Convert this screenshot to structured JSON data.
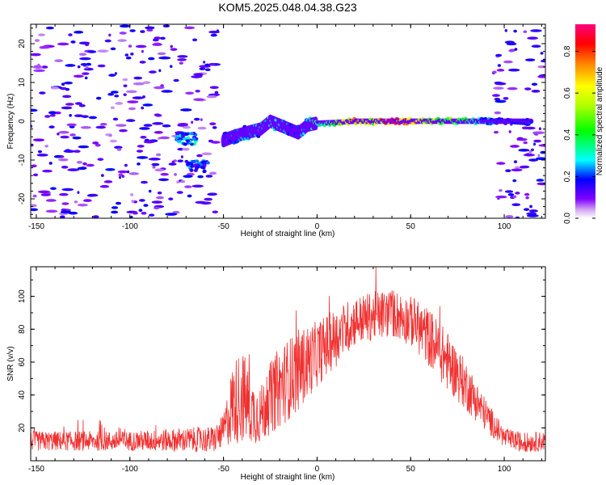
{
  "chart_data": [
    {
      "type": "heatmap",
      "title": "KOM5.2025.048.04.38.G23",
      "xlabel": "Height of straight line (km)",
      "ylabel": "Frequency (Hz)",
      "xlim": [
        -153,
        122
      ],
      "ylim": [
        -25,
        25
      ],
      "x_ticks": [
        -150,
        -100,
        -50,
        0,
        50,
        100
      ],
      "y_ticks": [
        -20,
        -10,
        0,
        10,
        20
      ],
      "colorbar": {
        "label": "Normalized spectral amplitude",
        "range": [
          0,
          0.93
        ],
        "ticks": [
          0.0,
          0.2,
          0.4,
          0.6,
          0.8
        ]
      },
      "noise_regions_x": [
        [
          -153,
          -52
        ],
        [
          93,
          122
        ]
      ],
      "noise_level": 0.15,
      "clusters": [
        {
          "x": [
            -75,
            -64
          ],
          "freq": -4.5,
          "amplitude": 0.25
        },
        {
          "x": [
            -70,
            -58
          ],
          "freq": -11.5,
          "amplitude": 0.2
        }
      ],
      "trace": [
        {
          "x": -50,
          "freq": -5,
          "amplitude": 0.2
        },
        {
          "x": -45,
          "freq": -4,
          "amplitude": 0.22
        },
        {
          "x": -38,
          "freq": -3,
          "amplitude": 0.25
        },
        {
          "x": -30,
          "freq": -2,
          "amplitude": 0.25
        },
        {
          "x": -25,
          "freq": 0,
          "amplitude": 0.3
        },
        {
          "x": -20,
          "freq": -1,
          "amplitude": 0.35
        },
        {
          "x": -15,
          "freq": -2,
          "amplitude": 0.25
        },
        {
          "x": -10,
          "freq": -3,
          "amplitude": 0.2
        },
        {
          "x": -5,
          "freq": -1,
          "amplitude": 0.3
        },
        {
          "x": 0,
          "freq": -0.5,
          "amplitude": 0.35
        },
        {
          "x": 10,
          "freq": -0.3,
          "amplitude": 0.45
        },
        {
          "x": 20,
          "freq": 0,
          "amplitude": 0.75
        },
        {
          "x": 30,
          "freq": 0,
          "amplitude": 0.6
        },
        {
          "x": 40,
          "freq": 0,
          "amplitude": 0.9
        },
        {
          "x": 50,
          "freq": 0,
          "amplitude": 0.7
        },
        {
          "x": 60,
          "freq": 0,
          "amplitude": 0.6
        },
        {
          "x": 70,
          "freq": 0,
          "amplitude": 0.5
        },
        {
          "x": 80,
          "freq": 0,
          "amplitude": 0.4
        },
        {
          "x": 90,
          "freq": 0,
          "amplitude": 0.25
        },
        {
          "x": 100,
          "freq": 0,
          "amplitude": 0.15
        },
        {
          "x": 115,
          "freq": 0,
          "amplitude": 0.2
        }
      ]
    },
    {
      "type": "line",
      "xlabel": "Height of straight line (km)",
      "ylabel": "SNR (v/v)",
      "xlim": [
        -153,
        122
      ],
      "ylim": [
        0,
        118
      ],
      "x_ticks": [
        -150,
        -100,
        -50,
        0,
        50,
        100
      ],
      "y_ticks": [
        20,
        40,
        60,
        80,
        100
      ],
      "series": [
        {
          "color": "#f03030",
          "envelope": {
            "x": [
              -153,
              -100,
              -55,
              -50,
              -45,
              -40,
              -35,
              -30,
              -25,
              -20,
              -10,
              0,
              10,
              20,
              30,
              40,
              50,
              60,
              70,
              80,
              90,
              100,
              110,
              122
            ],
            "mean": [
              12,
              12,
              13,
              18,
              35,
              40,
              30,
              28,
              38,
              45,
              55,
              65,
              75,
              85,
              88,
              90,
              85,
              75,
              60,
              45,
              28,
              14,
              11,
              12
            ],
            "spread": [
              6,
              6,
              8,
              10,
              25,
              30,
              20,
              18,
              22,
              25,
              25,
              20,
              18,
              15,
              15,
              15,
              15,
              18,
              18,
              15,
              10,
              6,
              6,
              6
            ]
          }
        }
      ]
    }
  ]
}
